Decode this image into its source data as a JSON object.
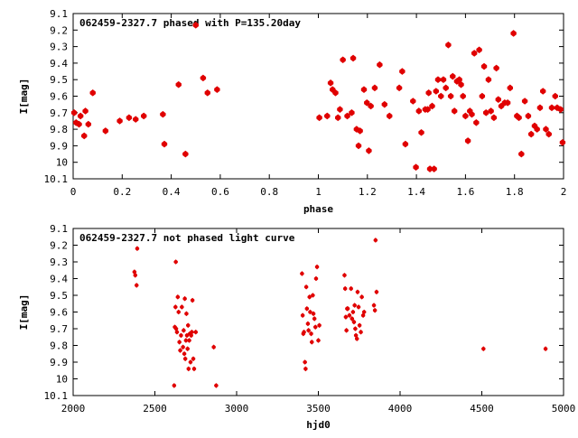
{
  "chart_data": [
    {
      "type": "scatter",
      "title": "062459-2327.7 phased with P=135.20day",
      "xlabel": "phase",
      "ylabel": "I[mag]",
      "xlim": [
        0,
        2
      ],
      "ylim": [
        10.1,
        9.1
      ],
      "y_inverted": true,
      "xticks": [
        "0",
        "0.2",
        "0.4",
        "0.6",
        "0.8",
        "1",
        "1.2",
        "1.4",
        "1.6",
        "1.8",
        "2"
      ],
      "yticks": [
        "9.1",
        "9.2",
        "9.3",
        "9.4",
        "9.5",
        "9.6",
        "9.7",
        "9.8",
        "9.9",
        "10",
        "10.1"
      ],
      "marker_color": "#e00000",
      "x": [
        0.004,
        0.012,
        0.024,
        0.03,
        0.045,
        0.05,
        0.062,
        0.08,
        0.132,
        0.19,
        0.228,
        0.255,
        0.288,
        0.366,
        0.372,
        0.43,
        0.458,
        0.5,
        0.53,
        0.548,
        0.587,
        1.004,
        1.036,
        1.05,
        1.058,
        1.07,
        1.08,
        1.088,
        1.1,
        1.118,
        1.136,
        1.142,
        1.156,
        1.164,
        1.17,
        1.186,
        1.198,
        1.206,
        1.214,
        1.23,
        1.25,
        1.27,
        1.29,
        1.33,
        1.342,
        1.355,
        1.386,
        1.398,
        1.41,
        1.42,
        1.436,
        1.446,
        1.45,
        1.455,
        1.464,
        1.472,
        1.48,
        1.488,
        1.5,
        1.51,
        1.52,
        1.53,
        1.54,
        1.548,
        1.555,
        1.565,
        1.575,
        1.582,
        1.59,
        1.6,
        1.61,
        1.618,
        1.626,
        1.636,
        1.644,
        1.656,
        1.668,
        1.676,
        1.684,
        1.694,
        1.704,
        1.716,
        1.726,
        1.734,
        1.746,
        1.76,
        1.772,
        1.782,
        1.796,
        1.81,
        1.818,
        1.828,
        1.842,
        1.856,
        1.868,
        1.882,
        1.892,
        1.904,
        1.916,
        1.928,
        1.94,
        1.952,
        1.966,
        1.974,
        1.988,
        1.996
      ],
      "y": [
        9.7,
        9.76,
        9.77,
        9.72,
        9.84,
        9.69,
        9.77,
        9.58,
        9.81,
        9.75,
        9.73,
        9.74,
        9.72,
        9.71,
        9.89,
        9.53,
        9.95,
        9.17,
        9.49,
        9.58,
        9.56,
        9.73,
        9.72,
        9.52,
        9.56,
        9.58,
        9.73,
        9.68,
        9.38,
        9.72,
        9.7,
        9.37,
        9.8,
        9.9,
        9.81,
        9.56,
        9.64,
        9.93,
        9.66,
        9.55,
        9.41,
        9.65,
        9.72,
        9.55,
        9.45,
        9.89,
        9.63,
        10.03,
        9.69,
        9.82,
        9.68,
        9.68,
        9.58,
        10.04,
        9.66,
        10.04,
        9.57,
        9.5,
        9.6,
        9.5,
        9.55,
        9.29,
        9.6,
        9.48,
        9.69,
        9.51,
        9.5,
        9.53,
        9.6,
        9.72,
        9.87,
        9.69,
        9.71,
        9.34,
        9.76,
        9.32,
        9.6,
        9.42,
        9.7,
        9.5,
        9.69,
        9.73,
        9.43,
        9.62,
        9.66,
        9.64,
        9.64,
        9.55,
        9.22,
        9.72,
        9.73,
        9.95,
        9.63,
        9.72,
        9.83,
        9.78,
        9.8,
        9.67,
        9.57,
        9.8,
        9.83,
        9.67,
        9.6,
        9.67,
        9.68,
        9.88
      ]
    },
    {
      "type": "scatter",
      "title": "062459-2327.7 not phased light curve",
      "xlabel": "hjd0",
      "ylabel": "I[mag]",
      "xlim": [
        2000,
        5000
      ],
      "ylim": [
        10.1,
        9.1
      ],
      "y_inverted": true,
      "xticks": [
        "2000",
        "2500",
        "3000",
        "3500",
        "4000",
        "4500",
        "5000"
      ],
      "yticks": [
        "9.1",
        "9.2",
        "9.3",
        "9.4",
        "9.5",
        "9.6",
        "9.7",
        "9.8",
        "9.9",
        "10",
        "10.1"
      ],
      "marker_color": "#e00000",
      "x": [
        2375,
        2380,
        2388,
        2392,
        2618,
        2622,
        2626,
        2628,
        2630,
        2635,
        2640,
        2645,
        2650,
        2655,
        2660,
        2665,
        2672,
        2676,
        2680,
        2683,
        2686,
        2690,
        2693,
        2696,
        2700,
        2703,
        2706,
        2710,
        2714,
        2718,
        2722,
        2726,
        2730,
        2735,
        2740,
        2750,
        2860,
        2875,
        3400,
        3404,
        3408,
        3412,
        3418,
        3422,
        3426,
        3430,
        3436,
        3440,
        3446,
        3450,
        3456,
        3460,
        3466,
        3470,
        3476,
        3482,
        3486,
        3492,
        3500,
        3506,
        3660,
        3664,
        3668,
        3672,
        3676,
        3680,
        3690,
        3700,
        3706,
        3712,
        3718,
        3722,
        3726,
        3730,
        3736,
        3740,
        3746,
        3752,
        3760,
        3766,
        3774,
        3780,
        3840,
        3846,
        3850,
        3856,
        4510,
        4890
      ],
      "y": [
        9.36,
        9.38,
        9.44,
        9.22,
        10.04,
        9.69,
        9.57,
        9.3,
        9.7,
        9.72,
        9.51,
        9.6,
        9.78,
        9.83,
        9.74,
        9.57,
        9.81,
        9.71,
        9.85,
        9.52,
        9.88,
        9.77,
        9.61,
        9.74,
        9.82,
        9.68,
        9.94,
        9.77,
        9.73,
        9.9,
        9.74,
        9.72,
        9.53,
        9.88,
        9.94,
        9.72,
        9.81,
        10.04,
        9.37,
        9.62,
        9.73,
        9.72,
        9.9,
        9.94,
        9.45,
        9.58,
        9.67,
        9.71,
        9.51,
        9.6,
        9.73,
        9.78,
        9.5,
        9.61,
        9.64,
        9.69,
        9.4,
        9.33,
        9.77,
        9.68,
        9.38,
        9.46,
        9.63,
        9.71,
        9.58,
        9.58,
        9.62,
        9.46,
        9.64,
        9.6,
        9.66,
        9.56,
        9.7,
        9.74,
        9.76,
        9.48,
        9.57,
        9.68,
        9.72,
        9.51,
        9.62,
        9.6,
        9.56,
        9.59,
        9.17,
        9.48,
        9.82,
        9.82
      ]
    }
  ]
}
